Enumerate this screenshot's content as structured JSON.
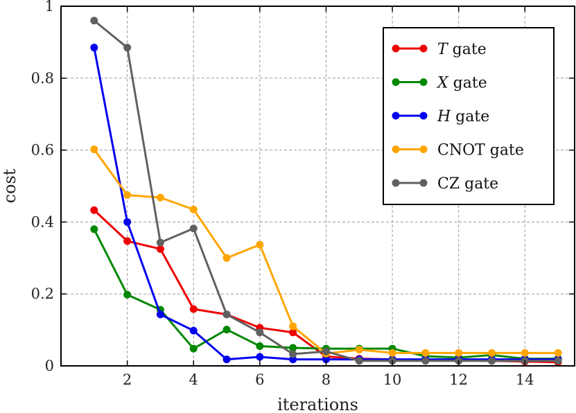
{
  "chart_data": {
    "type": "line",
    "xlabel": "iterations",
    "ylabel": "cost",
    "xlim": [
      0,
      15.5
    ],
    "ylim": [
      0,
      1
    ],
    "x_ticks": [
      2,
      4,
      6,
      8,
      10,
      12,
      14
    ],
    "y_ticks": [
      0,
      0.2,
      0.4,
      0.6,
      0.8,
      1
    ],
    "y_tick_labels": [
      "0",
      "0.2",
      "0.4",
      "0.6",
      "0.8",
      "1"
    ],
    "grid": true,
    "legend_position": "top-right",
    "x": [
      1,
      2,
      3,
      4,
      5,
      6,
      7,
      8,
      9,
      10,
      11,
      12,
      13,
      14,
      15
    ],
    "series": [
      {
        "name_symbol": "T",
        "name_suffix": " gate",
        "color": "#ee0000",
        "values": [
          0.433,
          0.347,
          0.325,
          0.158,
          0.143,
          0.106,
          0.093,
          0.026,
          0.02,
          0.018,
          0.016,
          0.015,
          0.014,
          0.012,
          0.01
        ]
      },
      {
        "name_symbol": "X",
        "name_suffix": " gate",
        "color": "#008800",
        "values": [
          0.38,
          0.198,
          0.156,
          0.048,
          0.101,
          0.055,
          0.05,
          0.048,
          0.048,
          0.048,
          0.027,
          0.023,
          0.03,
          0.02,
          0.02
        ]
      },
      {
        "name_symbol": "H",
        "name_suffix": " gate",
        "color": "#0000ee",
        "values": [
          0.885,
          0.4,
          0.143,
          0.098,
          0.018,
          0.025,
          0.018,
          0.018,
          0.018,
          0.018,
          0.018,
          0.018,
          0.018,
          0.018,
          0.018
        ]
      },
      {
        "name_symbol": "",
        "name_suffix": "CNOT gate",
        "color": "#ffa500",
        "values": [
          0.602,
          0.475,
          0.468,
          0.435,
          0.3,
          0.337,
          0.11,
          0.034,
          0.045,
          0.036,
          0.036,
          0.036,
          0.036,
          0.036,
          0.036
        ]
      },
      {
        "name_symbol": "",
        "name_suffix": "CZ gate",
        "color": "#606060",
        "values": [
          0.96,
          0.885,
          0.343,
          0.382,
          0.143,
          0.093,
          0.033,
          0.04,
          0.014,
          0.014,
          0.014,
          0.014,
          0.014,
          0.014,
          0.014
        ]
      }
    ]
  }
}
